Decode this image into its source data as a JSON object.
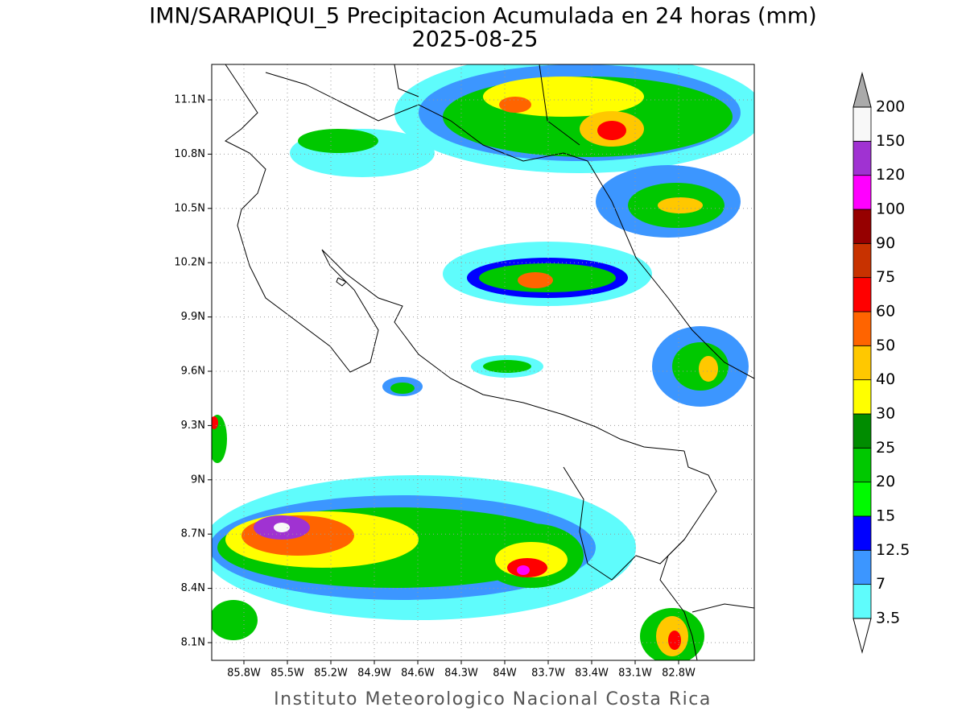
{
  "map": {
    "title": "IMN/SARAPIQUI_5 Precipitacion Acumulada en 24 horas (mm)",
    "subtitle": "2025-08-25",
    "footer": "Instituto Meteorologico Nacional Costa Rica",
    "lat_ticks": [
      {
        "value": 11.1,
        "label": "11.1N"
      },
      {
        "value": 10.8,
        "label": "10.8N"
      },
      {
        "value": 10.5,
        "label": "10.5N"
      },
      {
        "value": 10.2,
        "label": "10.2N"
      },
      {
        "value": 9.9,
        "label": "9.9N"
      },
      {
        "value": 9.6,
        "label": "9.6N"
      },
      {
        "value": 9.3,
        "label": "9.3N"
      },
      {
        "value": 9,
        "label": "9N"
      },
      {
        "value": 8.7,
        "label": "8.7N"
      },
      {
        "value": 8.4,
        "label": "8.4N"
      },
      {
        "value": 8.1,
        "label": "8.1N"
      }
    ],
    "lon_ticks": [
      {
        "value": 85.8,
        "label": "85.8W"
      },
      {
        "value": 85.5,
        "label": "85.5W"
      },
      {
        "value": 85.2,
        "label": "85.2W"
      },
      {
        "value": 84.9,
        "label": "84.9W"
      },
      {
        "value": 84.6,
        "label": "84.6W"
      },
      {
        "value": 84.3,
        "label": "84.3W"
      },
      {
        "value": 84,
        "label": "84W"
      },
      {
        "value": 83.7,
        "label": "83.7W"
      },
      {
        "value": 83.4,
        "label": "83.4W"
      },
      {
        "value": 83.1,
        "label": "83.1W"
      },
      {
        "value": 82.8,
        "label": "82.8W"
      }
    ],
    "grid": true,
    "colorbar": {
      "levels": [
        3.5,
        7,
        12.5,
        15,
        20,
        25,
        30,
        40,
        50,
        60,
        75,
        90,
        100,
        120,
        150,
        200
      ],
      "colors": [
        "#5ffcfc",
        "#3c96ff",
        "#0000ff",
        "#00fa00",
        "#00c800",
        "#008c00",
        "#ffff00",
        "#ffc800",
        "#ff6400",
        "#ff0000",
        "#c83200",
        "#960000",
        "#ff00ff",
        "#a032d2",
        "#f8f8f8"
      ],
      "under_color": "#ffffff",
      "over_color": "#aaaaaa"
    }
  }
}
